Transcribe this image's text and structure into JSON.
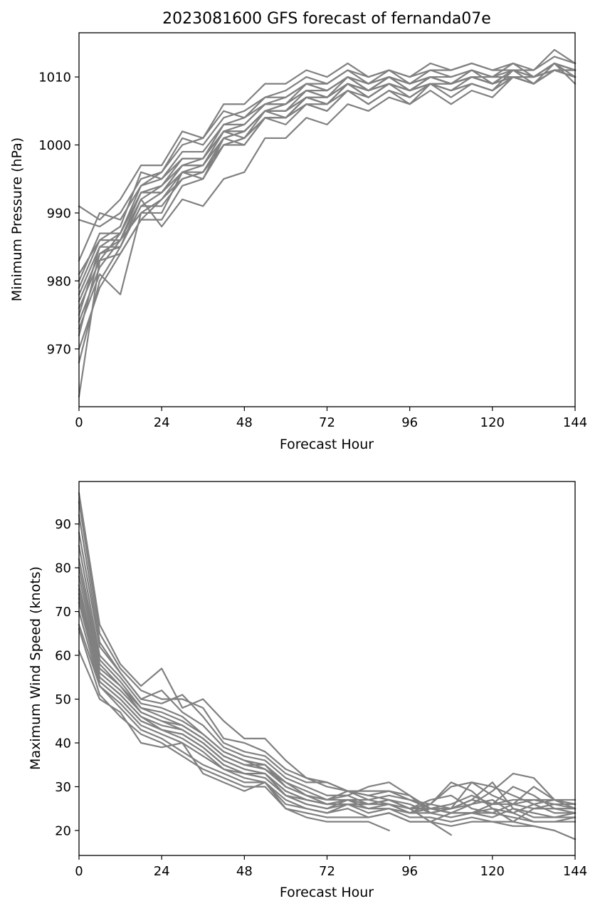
{
  "chart_data": [
    {
      "type": "line",
      "title": "2023081600 GFS forecast of fernanda07e",
      "xlabel": "Forecast Hour",
      "ylabel": "Minimum Pressure (hPa)",
      "xlim": [
        0,
        144
      ],
      "ylim": [
        961.5,
        1016.5
      ],
      "xticks": [
        0,
        24,
        48,
        72,
        96,
        120,
        144
      ],
      "yticks": [
        970,
        980,
        990,
        1000,
        1010
      ],
      "grid": false,
      "line_color": "#808080",
      "x": [
        0,
        6,
        12,
        18,
        24,
        30,
        36,
        42,
        48,
        54,
        60,
        66,
        72,
        78,
        84,
        90,
        96,
        102,
        108,
        114,
        120,
        126,
        132,
        138,
        144
      ],
      "series": [
        {
          "values": [
            991,
            989,
            992,
            997,
            997,
            1002,
            1001,
            1006,
            1006,
            1009,
            1009,
            1011,
            1010,
            1012,
            1010,
            1011,
            1010,
            1011,
            1011,
            1012,
            1011,
            1012,
            1011,
            1014,
            1012
          ]
        },
        {
          "values": [
            989,
            988,
            990,
            995,
            996,
            1000,
            1001,
            1005,
            1004,
            1007,
            1008,
            1010,
            1009,
            1011,
            1010,
            1011,
            1010,
            1012,
            1011,
            1012,
            1011,
            1011,
            1011,
            1013,
            1012
          ]
        },
        {
          "values": [
            983,
            990,
            989,
            994,
            996,
            1001,
            1000,
            1004,
            1005,
            1007,
            1007,
            1009,
            1009,
            1011,
            1009,
            1011,
            1009,
            1011,
            1010,
            1011,
            1010,
            1012,
            1010,
            1012,
            1011
          ]
        },
        {
          "values": [
            981,
            986,
            988,
            996,
            995,
            999,
            999,
            1003,
            1004,
            1006,
            1007,
            1009,
            1008,
            1010,
            1009,
            1010,
            1009,
            1010,
            1010,
            1011,
            1010,
            1011,
            1010,
            1012,
            1011
          ]
        },
        {
          "values": [
            980,
            987,
            987,
            993,
            994,
            998,
            998,
            1002,
            1003,
            1006,
            1006,
            1008,
            1008,
            1010,
            1009,
            1010,
            1009,
            1010,
            1009,
            1011,
            1010,
            1010,
            1010,
            1011,
            1011
          ]
        },
        {
          "values": [
            979,
            986,
            986,
            992,
            994,
            997,
            997,
            1002,
            1002,
            1005,
            1006,
            1008,
            1007,
            1009,
            1008,
            1010,
            1008,
            1010,
            1009,
            1010,
            1009,
            1010,
            1010,
            1011,
            1010
          ]
        },
        {
          "values": [
            978,
            985,
            985,
            991,
            993,
            996,
            996,
            1001,
            1002,
            1005,
            1005,
            1007,
            1007,
            1009,
            1008,
            1009,
            1008,
            1009,
            1009,
            1010,
            1009,
            1010,
            1009,
            1011,
            1010
          ]
        },
        {
          "values": [
            977,
            984,
            986,
            990,
            992,
            995,
            996,
            1000,
            1001,
            1004,
            1004,
            1007,
            1006,
            1009,
            1007,
            1009,
            1008,
            1009,
            1008,
            1010,
            1009,
            1010,
            1009,
            1011,
            1010
          ]
        },
        {
          "values": [
            976,
            983,
            984,
            989,
            992,
            996,
            997,
            1001,
            1002,
            1005,
            1005,
            1008,
            1007,
            1010,
            1008,
            1010,
            1009,
            1010,
            1009,
            1010,
            1010,
            1010,
            1010,
            1011,
            1010
          ]
        },
        {
          "values": [
            975,
            985,
            987,
            994,
            995,
            998,
            998,
            1003,
            1003,
            1006,
            1006,
            1009,
            1008,
            1010,
            1008,
            1010,
            1008,
            1010,
            1009,
            1011,
            1009,
            1011,
            1010,
            1012,
            1010
          ]
        },
        {
          "values": [
            974,
            982,
            986,
            993,
            993,
            997,
            997,
            1002,
            1001,
            1005,
            1004,
            1007,
            1006,
            1009,
            1007,
            1009,
            1008,
            1009,
            1009,
            1010,
            1009,
            1011,
            1009,
            1012,
            1009
          ]
        },
        {
          "values": [
            973,
            981,
            978,
            990,
            990,
            996,
            995,
            1001,
            1000,
            1004,
            1004,
            1006,
            1006,
            1008,
            1007,
            1009,
            1007,
            1009,
            1008,
            1009,
            1008,
            1010,
            1009,
            1011,
            1010
          ]
        },
        {
          "values": [
            972,
            984,
            985,
            992,
            988,
            992,
            991,
            995,
            996,
            1001,
            1001,
            1004,
            1003,
            1006,
            1005,
            1007,
            1006,
            1008,
            1006,
            1008,
            1007,
            1010,
            1009,
            1011,
            1010
          ]
        },
        {
          "values": [
            970,
            979,
            984,
            989,
            989,
            994,
            995,
            1000,
            1000,
            1004,
            1003,
            1006,
            1005,
            1008,
            1006,
            1008,
            1006,
            1009,
            1008,
            1009,
            1008,
            1011,
            1010,
            1012,
            1011
          ]
        },
        {
          "values": [
            968,
            980,
            985,
            991,
            991,
            995,
            996,
            1000,
            1001,
            1004,
            1004,
            1006,
            1005,
            1008,
            1006,
            1008,
            1007,
            1009,
            1007,
            1009,
            1008,
            1010,
            1009,
            1011,
            1010
          ]
        },
        {
          "values": [
            963,
            983,
            987,
            993,
            993,
            997,
            998,
            1002,
            1002,
            1005,
            1005,
            1007,
            1007,
            1009,
            1008,
            1009,
            1008,
            1010,
            1009,
            1010,
            1009,
            1010,
            1010,
            1011,
            1011
          ]
        }
      ]
    },
    {
      "type": "line",
      "title": "",
      "xlabel": "Forecast Hour",
      "ylabel": "Maximum Wind Speed (knots)",
      "xlim": [
        0,
        144
      ],
      "ylim": [
        14.3,
        99.7
      ],
      "xticks": [
        0,
        24,
        48,
        72,
        96,
        120,
        144
      ],
      "yticks": [
        20,
        30,
        40,
        50,
        60,
        70,
        80,
        90
      ],
      "grid": false,
      "line_color": "#808080",
      "x": [
        0,
        6,
        12,
        18,
        24,
        30,
        36,
        42,
        48,
        54,
        60,
        66,
        72,
        78,
        84,
        90,
        96,
        102,
        108,
        114,
        120,
        126,
        132,
        138,
        144
      ],
      "series": [
        {
          "values": [
            97,
            67,
            58,
            53,
            57,
            48,
            50,
            45,
            41,
            41,
            36,
            32,
            30,
            29,
            28,
            29,
            27,
            26,
            25,
            27,
            26,
            27,
            27,
            27,
            27
          ]
        },
        {
          "values": [
            95,
            65,
            57,
            52,
            50,
            50,
            48,
            41,
            40,
            38,
            34,
            32,
            31,
            29,
            29,
            29,
            28,
            25,
            25,
            26,
            29,
            33,
            32,
            27,
            25
          ]
        },
        {
          "values": [
            92,
            63,
            56,
            50,
            49,
            51,
            46,
            40,
            38,
            37,
            33,
            31,
            31,
            29,
            27,
            28,
            27,
            25,
            24,
            24,
            26,
            30,
            28,
            25,
            24
          ]
        },
        {
          "values": [
            88,
            62,
            56,
            50,
            52,
            47,
            44,
            39,
            37,
            36,
            32,
            30,
            28,
            28,
            30,
            31,
            28,
            24,
            25,
            31,
            30,
            28,
            26,
            24,
            24
          ]
        },
        {
          "values": [
            85,
            60,
            55,
            49,
            48,
            46,
            42,
            38,
            36,
            35,
            31,
            29,
            27,
            29,
            28,
            27,
            26,
            24,
            25,
            27,
            31,
            25,
            23,
            23,
            23
          ]
        },
        {
          "values": [
            82,
            59,
            54,
            48,
            47,
            45,
            42,
            38,
            36,
            34,
            31,
            28,
            27,
            28,
            26,
            27,
            25,
            22,
            24,
            26,
            27,
            24,
            22,
            22,
            22
          ]
        },
        {
          "values": [
            80,
            58,
            53,
            48,
            46,
            44,
            41,
            37,
            35,
            35,
            30,
            28,
            27,
            27,
            27,
            26,
            25,
            26,
            30,
            31,
            28,
            26,
            25,
            26,
            25
          ]
        },
        {
          "values": [
            78,
            57,
            53,
            47,
            45,
            44,
            41,
            37,
            35,
            34,
            30,
            28,
            26,
            27,
            26,
            26,
            24,
            26,
            31,
            29,
            25,
            22,
            25,
            25,
            25
          ]
        },
        {
          "values": [
            76,
            56,
            52,
            47,
            45,
            43,
            40,
            36,
            34,
            33,
            29,
            27,
            26,
            27,
            26,
            26,
            24,
            25,
            26,
            28,
            26,
            26,
            27,
            26,
            26
          ]
        },
        {
          "values": [
            75,
            55,
            51,
            46,
            44,
            43,
            40,
            36,
            34,
            33,
            29,
            27,
            26,
            26,
            26,
            27,
            25,
            25,
            24,
            24,
            25,
            24,
            26,
            27,
            26
          ]
        },
        {
          "values": [
            74,
            55,
            51,
            46,
            43,
            42,
            39,
            35,
            33,
            33,
            28,
            27,
            26,
            26,
            26,
            27,
            25,
            27,
            28,
            25,
            24,
            26,
            30,
            27,
            26
          ]
        },
        {
          "values": [
            73,
            54,
            50,
            45,
            43,
            42,
            39,
            35,
            33,
            32,
            28,
            26,
            25,
            27,
            25,
            26,
            24,
            24,
            23,
            24,
            23,
            25,
            24,
            23,
            24
          ]
        },
        {
          "values": [
            72,
            54,
            50,
            45,
            43,
            41,
            38,
            34,
            33,
            32,
            28,
            26,
            25,
            26,
            25,
            25,
            24,
            25,
            24,
            24,
            24,
            23,
            22,
            22,
            23
          ]
        },
        {
          "values": [
            70,
            53,
            49,
            44,
            42,
            40,
            37,
            34,
            32,
            31,
            27,
            25,
            24,
            26,
            24,
            25,
            23,
            23,
            22,
            23,
            22,
            21,
            21,
            20,
            null
          ]
        },
        {
          "values": [
            67,
            53,
            48,
            43,
            41,
            38,
            35,
            33,
            31,
            31,
            26,
            25,
            24,
            25,
            23,
            24,
            22,
            22,
            21,
            22,
            22,
            22,
            21,
            20,
            18
          ]
        },
        {
          "values": [
            66,
            51,
            46,
            42,
            40,
            37,
            34,
            32,
            30,
            30,
            25,
            24,
            23,
            23,
            23,
            24,
            22,
            22,
            19,
            null,
            null,
            null,
            null,
            null,
            null
          ]
        },
        {
          "values": [
            61,
            50,
            47,
            40,
            39,
            40,
            33,
            31,
            29,
            31,
            25,
            23,
            22,
            22,
            22,
            20,
            null,
            null,
            null,
            null,
            null,
            null,
            null,
            null,
            null
          ]
        }
      ]
    }
  ]
}
